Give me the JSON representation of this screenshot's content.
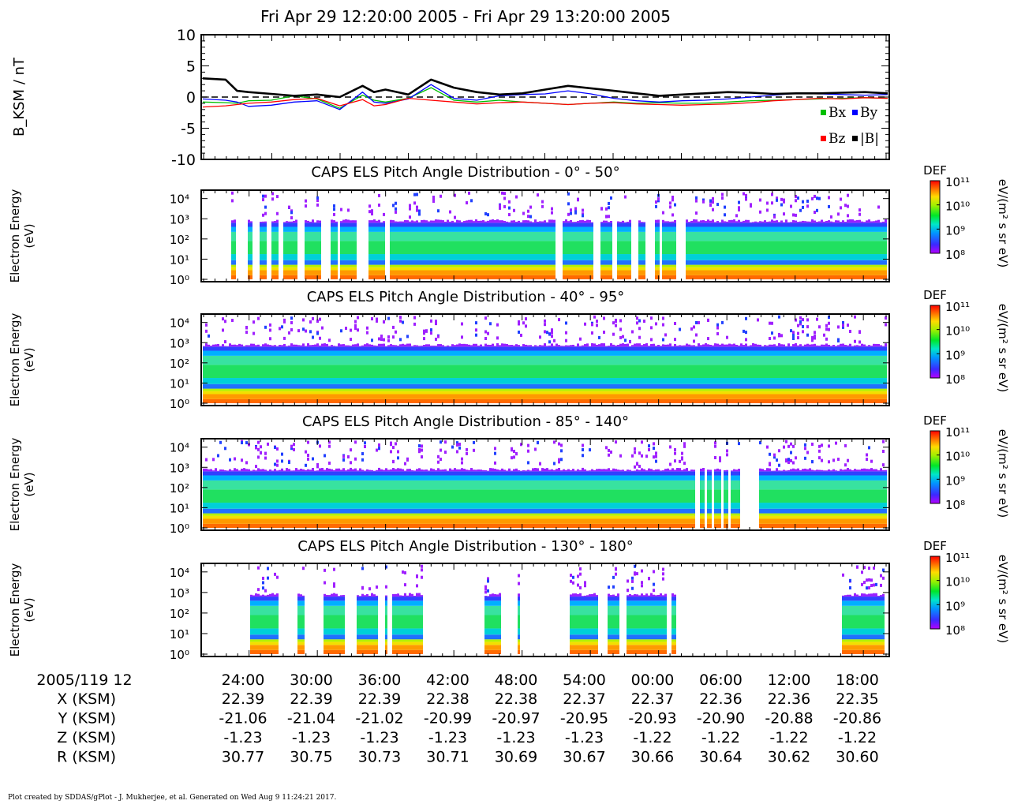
{
  "title": "Fri Apr 29 12:20:00 2005 - Fri Apr 29 13:20:00 2005",
  "footer": "Plot created by SDDAS/gPlot - J. Mukherjee, et al.  Generated on Wed Aug 9 11:24:21 2017.",
  "colors": {
    "bx": "#00c000",
    "by": "#0000ff",
    "bz": "#ff0000",
    "bmag": "#000000"
  },
  "chart_data": [
    {
      "type": "line",
      "ylabel": "B_KSM / nT",
      "ylim": [
        -10,
        10
      ],
      "yticks": [
        "10",
        "5",
        "0",
        "-5",
        "-10"
      ],
      "zero_line": "dashed",
      "legend": [
        {
          "key": "bx",
          "label": "Bx"
        },
        {
          "key": "by",
          "label": "By"
        },
        {
          "key": "bz",
          "label": "Bz"
        },
        {
          "key": "bmag",
          "label": "|B|"
        }
      ],
      "x_minutes": [
        0,
        2,
        3,
        4,
        6,
        8,
        10,
        12,
        14,
        15,
        16,
        18,
        20,
        22,
        24,
        26,
        28,
        30,
        32,
        34,
        36,
        38,
        40,
        42,
        44,
        46,
        48,
        50,
        52,
        54,
        56,
        58,
        60
      ],
      "series": [
        {
          "key": "bmag",
          "values": [
            3.0,
            2.8,
            1.0,
            0.8,
            0.5,
            0.2,
            0.4,
            0.0,
            1.8,
            0.8,
            1.2,
            0.4,
            2.8,
            1.5,
            0.8,
            0.4,
            0.6,
            1.2,
            1.8,
            1.4,
            1.0,
            0.6,
            0.2,
            0.4,
            0.6,
            0.8,
            0.7,
            0.5,
            0.6,
            0.6,
            0.7,
            0.8,
            0.6
          ]
        },
        {
          "key": "bx",
          "values": [
            -0.8,
            -0.9,
            -1.0,
            -0.6,
            -0.5,
            0.2,
            -0.3,
            -1.8,
            0.3,
            -0.5,
            -0.8,
            -0.2,
            1.5,
            -0.5,
            -0.8,
            -0.5,
            -0.8,
            -1.0,
            -1.2,
            -1.0,
            -0.8,
            -1.0,
            -0.9,
            -1.0,
            -1.0,
            -0.8,
            -0.6,
            -0.5,
            -0.4,
            -0.3,
            -0.2,
            -0.1,
            -0.2
          ]
        },
        {
          "key": "by",
          "values": [
            -0.3,
            -0.5,
            -0.8,
            -1.5,
            -1.3,
            -0.8,
            -0.6,
            -2.0,
            0.8,
            -0.8,
            -1.0,
            -0.3,
            2.0,
            -0.2,
            -0.5,
            0.2,
            0.4,
            0.5,
            1.0,
            0.5,
            -0.2,
            -0.6,
            -0.8,
            -0.6,
            -0.5,
            -0.3,
            0.0,
            0.3,
            0.6,
            0.5,
            0.4,
            0.3,
            0.4
          ]
        },
        {
          "key": "bz",
          "values": [
            -1.6,
            -1.4,
            -1.2,
            -1.0,
            -0.8,
            -0.4,
            -0.2,
            -1.4,
            -0.4,
            -1.4,
            -1.2,
            -0.2,
            -0.5,
            -0.8,
            -1.1,
            -0.9,
            -0.8,
            -1.0,
            -1.2,
            -1.0,
            -0.9,
            -1.1,
            -1.2,
            -1.3,
            -1.2,
            -1.1,
            -0.9,
            -0.6,
            -0.4,
            -0.2,
            -0.3,
            -0.1,
            -0.2
          ]
        }
      ]
    },
    {
      "type": "heatmap",
      "title": "CAPS ELS Pitch Angle Distribution - 0° - 50°",
      "ylabel": "Electron Energy",
      "yunit": "(eV)",
      "yscale": "log",
      "yticks": [
        "10⁰",
        "10¹",
        "10²",
        "10³",
        "10⁴"
      ],
      "colorbar": {
        "label": "DEF",
        "unit": "eV/(m² s sr eV)",
        "ticks": [
          "10⁸",
          "10⁹",
          "10¹⁰",
          "10¹¹"
        ]
      },
      "gaps_minutes": [
        [
          0,
          2.3
        ],
        [
          2.8,
          3.8
        ],
        [
          4.2,
          4.8
        ],
        [
          5.6,
          6.0
        ],
        [
          6.5,
          7.0
        ],
        [
          8.2,
          8.8
        ],
        [
          10.2,
          11.2
        ],
        [
          11.7,
          11.9
        ],
        [
          13.3,
          14.5
        ],
        [
          15.9,
          16.2
        ],
        [
          30.8,
          31.5
        ],
        [
          34.2,
          34.8
        ],
        [
          35.8,
          36.2
        ],
        [
          37.4,
          38.0
        ],
        [
          38.8,
          39.6
        ],
        [
          40.0,
          40.1
        ],
        [
          41.4,
          42.2
        ],
        [
          43.6,
          43.8
        ]
      ],
      "band_top_exp": 2.9
    },
    {
      "type": "heatmap",
      "title": "CAPS ELS Pitch Angle Distribution - 40° - 95°",
      "ylabel": "Electron Energy",
      "yunit": "(eV)",
      "yscale": "log",
      "yticks": [
        "10⁰",
        "10¹",
        "10²",
        "10³",
        "10⁴"
      ],
      "colorbar": {
        "label": "DEF",
        "unit": "eV/(m² s sr eV)",
        "ticks": [
          "10⁸",
          "10⁹",
          "10¹⁰",
          "10¹¹"
        ]
      },
      "gaps_minutes": [],
      "band_top_exp": 2.9
    },
    {
      "type": "heatmap",
      "title": "CAPS ELS Pitch Angle Distribution - 85° - 140°",
      "ylabel": "Electron Energy",
      "yunit": "(eV)",
      "yscale": "log",
      "yticks": [
        "10⁰",
        "10¹",
        "10²",
        "10³",
        "10⁴"
      ],
      "colorbar": {
        "label": "DEF",
        "unit": "eV/(m² s sr eV)",
        "ticks": [
          "10⁸",
          "10⁹",
          "10¹⁰",
          "10¹¹"
        ]
      },
      "gaps_minutes": [
        [
          43.0,
          43.4
        ],
        [
          43.9,
          44.2
        ],
        [
          44.6,
          44.8
        ],
        [
          45.3,
          45.5
        ],
        [
          46.0,
          46.2
        ],
        [
          47.0,
          48.6
        ]
      ],
      "band_top_exp": 2.9
    },
    {
      "type": "heatmap",
      "title": "CAPS ELS Pitch Angle Distribution - 130° - 180°",
      "ylabel": "Electron Energy",
      "yunit": "(eV)",
      "yscale": "log",
      "yticks": [
        "10⁰",
        "10¹",
        "10²",
        "10³",
        "10⁴"
      ],
      "colorbar": {
        "label": "DEF",
        "unit": "eV/(m² s sr eV)",
        "ticks": [
          "10⁸",
          "10⁹",
          "10¹⁰",
          "10¹¹"
        ]
      },
      "data_spans_minutes": [
        [
          4.0,
          6.6
        ],
        [
          8.2,
          8.8
        ],
        [
          10.5,
          12.4
        ],
        [
          13.3,
          15.3
        ],
        [
          15.8,
          16.0
        ],
        [
          16.5,
          19.3
        ],
        [
          24.7,
          26.0
        ],
        [
          27.5,
          27.7
        ],
        [
          32.0,
          34.5
        ],
        [
          35.3,
          36.4
        ],
        [
          37.0,
          40.5
        ],
        [
          41.0,
          41.4
        ],
        [
          56.0,
          59.6
        ]
      ],
      "band_top_exp": 2.9
    }
  ],
  "time_axis": {
    "start_label": "2005/119 12",
    "ticks": [
      "24:00",
      "30:00",
      "36:00",
      "42:00",
      "48:00",
      "54:00",
      "00:00",
      "06:00",
      "12:00",
      "18:00"
    ],
    "rows": [
      {
        "label": "X (KSM)",
        "values": [
          "22.39",
          "22.39",
          "22.39",
          "22.38",
          "22.38",
          "22.37",
          "22.37",
          "22.36",
          "22.36",
          "22.35"
        ]
      },
      {
        "label": "Y (KSM)",
        "values": [
          "-21.06",
          "-21.04",
          "-21.02",
          "-20.99",
          "-20.97",
          "-20.95",
          "-20.93",
          "-20.90",
          "-20.88",
          "-20.86"
        ]
      },
      {
        "label": "Z (KSM)",
        "values": [
          "-1.23",
          "-1.23",
          "-1.23",
          "-1.23",
          "-1.23",
          "-1.23",
          "-1.22",
          "-1.22",
          "-1.22",
          "-1.22"
        ]
      },
      {
        "label": "R (KSM)",
        "values": [
          "30.77",
          "30.75",
          "30.73",
          "30.71",
          "30.69",
          "30.67",
          "30.66",
          "30.64",
          "30.62",
          "30.60"
        ]
      }
    ]
  }
}
